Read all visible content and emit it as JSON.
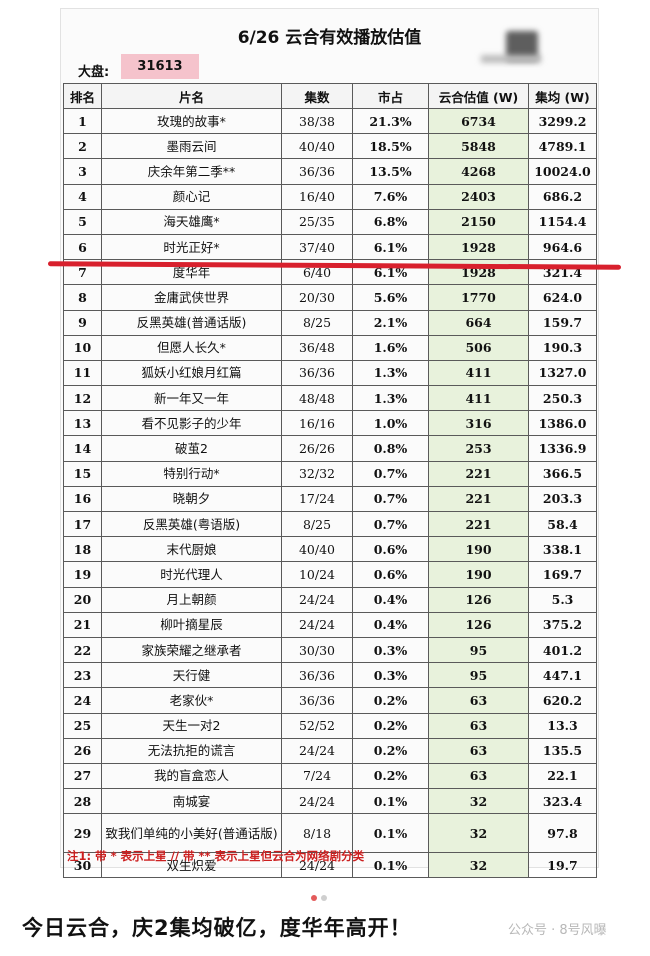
{
  "sheet": {
    "title": "6/26 云合有效播放估值",
    "dapan_label": "大盘:",
    "dapan_value": "31613",
    "headers": {
      "rank": "排名",
      "name": "片名",
      "episodes": "集数",
      "share": "市占",
      "value": "云合估值 (W)",
      "avg": "集均 (W)"
    },
    "rows": [
      {
        "rank": "1",
        "name": "玫瑰的故事*",
        "episodes": "38/38",
        "share": "21.3%",
        "value": "6734",
        "avg": "3299.2"
      },
      {
        "rank": "2",
        "name": "墨雨云间",
        "episodes": "40/40",
        "share": "18.5%",
        "value": "5848",
        "avg": "4789.1"
      },
      {
        "rank": "3",
        "name": "庆余年第二季**",
        "episodes": "36/36",
        "share": "13.5%",
        "value": "4268",
        "avg": "10024.0"
      },
      {
        "rank": "4",
        "name": "颜心记",
        "episodes": "16/40",
        "share": "7.6%",
        "value": "2403",
        "avg": "686.2"
      },
      {
        "rank": "5",
        "name": "海天雄鹰*",
        "episodes": "25/35",
        "share": "6.8%",
        "value": "2150",
        "avg": "1154.4"
      },
      {
        "rank": "6",
        "name": "时光正好*",
        "episodes": "37/40",
        "share": "6.1%",
        "value": "1928",
        "avg": "964.6"
      },
      {
        "rank": "7",
        "name": "度华年",
        "episodes": "6/40",
        "share": "6.1%",
        "value": "1928",
        "avg": "321.4"
      },
      {
        "rank": "8",
        "name": "金庸武侠世界",
        "episodes": "20/30",
        "share": "5.6%",
        "value": "1770",
        "avg": "624.0"
      },
      {
        "rank": "9",
        "name": "反黑英雄(普通话版)",
        "episodes": "8/25",
        "share": "2.1%",
        "value": "664",
        "avg": "159.7"
      },
      {
        "rank": "10",
        "name": "但愿人长久*",
        "episodes": "36/48",
        "share": "1.6%",
        "value": "506",
        "avg": "190.3"
      },
      {
        "rank": "11",
        "name": "狐妖小红娘月红篇",
        "episodes": "36/36",
        "share": "1.3%",
        "value": "411",
        "avg": "1327.0"
      },
      {
        "rank": "12",
        "name": "新一年又一年",
        "episodes": "48/48",
        "share": "1.3%",
        "value": "411",
        "avg": "250.3"
      },
      {
        "rank": "13",
        "name": "看不见影子的少年",
        "episodes": "16/16",
        "share": "1.0%",
        "value": "316",
        "avg": "1386.0"
      },
      {
        "rank": "14",
        "name": "破茧2",
        "episodes": "26/26",
        "share": "0.8%",
        "value": "253",
        "avg": "1336.9"
      },
      {
        "rank": "15",
        "name": "特别行动*",
        "episodes": "32/32",
        "share": "0.7%",
        "value": "221",
        "avg": "366.5"
      },
      {
        "rank": "16",
        "name": "晓朝夕",
        "episodes": "17/24",
        "share": "0.7%",
        "value": "221",
        "avg": "203.3"
      },
      {
        "rank": "17",
        "name": "反黑英雄(粤语版)",
        "episodes": "8/25",
        "share": "0.7%",
        "value": "221",
        "avg": "58.4"
      },
      {
        "rank": "18",
        "name": "末代厨娘",
        "episodes": "40/40",
        "share": "0.6%",
        "value": "190",
        "avg": "338.1"
      },
      {
        "rank": "19",
        "name": "时光代理人",
        "episodes": "10/24",
        "share": "0.6%",
        "value": "190",
        "avg": "169.7"
      },
      {
        "rank": "20",
        "name": "月上朝颜",
        "episodes": "24/24",
        "share": "0.4%",
        "value": "126",
        "avg": "5.3"
      },
      {
        "rank": "21",
        "name": "柳叶摘星辰",
        "episodes": "24/24",
        "share": "0.4%",
        "value": "126",
        "avg": "375.2"
      },
      {
        "rank": "22",
        "name": "家族荣耀之继承者",
        "episodes": "30/30",
        "share": "0.3%",
        "value": "95",
        "avg": "401.2"
      },
      {
        "rank": "23",
        "name": "天行健",
        "episodes": "36/36",
        "share": "0.3%",
        "value": "95",
        "avg": "447.1"
      },
      {
        "rank": "24",
        "name": "老家伙*",
        "episodes": "36/36",
        "share": "0.2%",
        "value": "63",
        "avg": "620.2"
      },
      {
        "rank": "25",
        "name": "天生一对2",
        "episodes": "52/52",
        "share": "0.2%",
        "value": "63",
        "avg": "13.3"
      },
      {
        "rank": "26",
        "name": "无法抗拒的谎言",
        "episodes": "24/24",
        "share": "0.2%",
        "value": "63",
        "avg": "135.5"
      },
      {
        "rank": "27",
        "name": "我的盲盒恋人",
        "episodes": "7/24",
        "share": "0.2%",
        "value": "63",
        "avg": "22.1"
      },
      {
        "rank": "28",
        "name": "南城宴",
        "episodes": "24/24",
        "share": "0.1%",
        "value": "32",
        "avg": "323.4"
      },
      {
        "rank": "29",
        "name": "致我们单纯的小美好(普通话版)",
        "episodes": "8/18",
        "share": "0.1%",
        "value": "32",
        "avg": "97.8"
      },
      {
        "rank": "30",
        "name": "双生炽爱",
        "episodes": "24/24",
        "share": "0.1%",
        "value": "32",
        "avg": "19.7"
      }
    ],
    "note": "注1: 带 * 表示上星 // 带 ** 表示上星但云合为网络剧分类"
  },
  "colors": {
    "value_column_bg": "#e8f2dc",
    "dapan_bg": "#f5c3cc",
    "red_line": "#d8202d",
    "note_text": "#cc1f1f"
  },
  "carousel": {
    "count": 2,
    "active": 1
  },
  "caption": "今日云合，庆2集均破亿，度华年高开！",
  "watermark": "公众号 · 8号风曝"
}
